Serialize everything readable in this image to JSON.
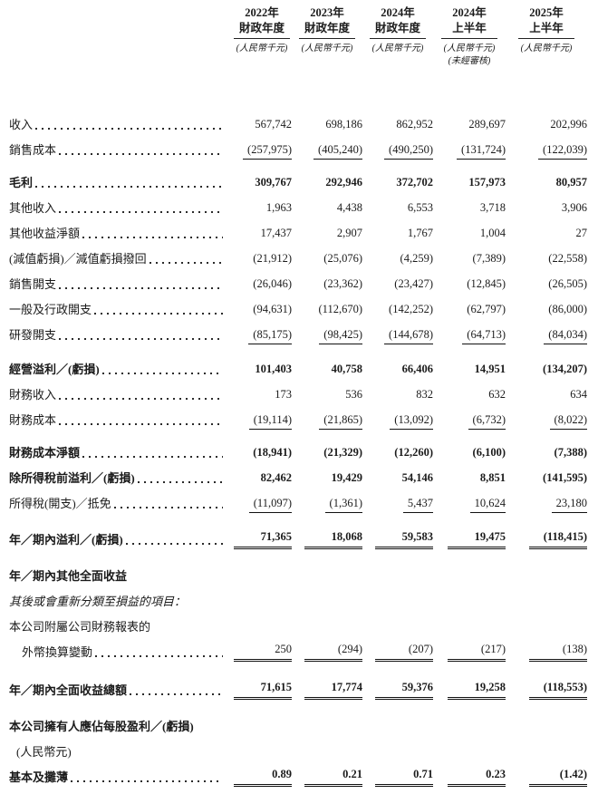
{
  "table": {
    "columns": [
      {
        "year": "2022年",
        "period": "財政年度",
        "unit": "(人民幣千元)",
        "note": ""
      },
      {
        "year": "2023年",
        "period": "財政年度",
        "unit": "(人民幣千元)",
        "note": ""
      },
      {
        "year": "2024年",
        "period": "財政年度",
        "unit": "(人民幣千元)",
        "note": ""
      },
      {
        "year": "2024年",
        "period": "上半年",
        "unit": "(人民幣千元)",
        "note": "(未經審核)"
      },
      {
        "year": "2025年",
        "period": "上半年",
        "unit": "(人民幣千元)",
        "note": ""
      }
    ],
    "rows": [
      {
        "label": "收入",
        "dots": true,
        "values": [
          "567,742",
          "698,186",
          "862,952",
          "289,697",
          "202,996"
        ]
      },
      {
        "label": "銷售成本",
        "dots": true,
        "rule": "single",
        "values": [
          "(257,975)",
          "(405,240)",
          "(490,250)",
          "(131,724)",
          "(122,039)"
        ]
      },
      {
        "label": "毛利",
        "dots": true,
        "bold": true,
        "gap": 8,
        "values": [
          "309,767",
          "292,946",
          "372,702",
          "157,973",
          "80,957"
        ]
      },
      {
        "label": "其他收入",
        "dots": true,
        "values": [
          "1,963",
          "4,438",
          "6,553",
          "3,718",
          "3,906"
        ]
      },
      {
        "label": "其他收益淨額",
        "dots": true,
        "values": [
          "17,437",
          "2,907",
          "1,767",
          "1,004",
          "27"
        ]
      },
      {
        "label": "(減值虧損)／減值虧損撥回",
        "dots": true,
        "values": [
          "(21,912)",
          "(25,076)",
          "(4,259)",
          "(7,389)",
          "(22,558)"
        ]
      },
      {
        "label": "銷售開支",
        "dots": true,
        "values": [
          "(26,046)",
          "(23,362)",
          "(23,427)",
          "(12,845)",
          "(26,505)"
        ]
      },
      {
        "label": "一般及行政開支",
        "dots": true,
        "values": [
          "(94,631)",
          "(112,670)",
          "(142,252)",
          "(62,797)",
          "(86,000)"
        ]
      },
      {
        "label": "研發開支",
        "dots": true,
        "rule": "single",
        "values": [
          "(85,175)",
          "(98,425)",
          "(144,678)",
          "(64,713)",
          "(84,034)"
        ]
      },
      {
        "label": "經營溢利／(虧損)",
        "dots": true,
        "bold": true,
        "gap": 10,
        "values": [
          "101,403",
          "40,758",
          "66,406",
          "14,951",
          "(134,207)"
        ]
      },
      {
        "label": "財務收入",
        "dots": true,
        "values": [
          "173",
          "536",
          "832",
          "632",
          "634"
        ]
      },
      {
        "label": "財務成本",
        "dots": true,
        "rule": "single",
        "values": [
          "(19,114)",
          "(21,865)",
          "(13,092)",
          "(6,732)",
          "(8,022)"
        ]
      },
      {
        "label": "財務成本淨額",
        "dots": true,
        "bold": true,
        "gap": 8,
        "values": [
          "(18,941)",
          "(21,329)",
          "(12,260)",
          "(6,100)",
          "(7,388)"
        ]
      },
      {
        "label": "除所得稅前溢利／(虧損)",
        "dots": true,
        "bold": true,
        "values": [
          "82,462",
          "19,429",
          "54,146",
          "8,851",
          "(141,595)"
        ]
      },
      {
        "label": "所得稅(開支)／抵免",
        "dots": true,
        "rule": "single",
        "values": [
          "(11,097)",
          "(1,361)",
          "5,437",
          "10,624",
          "23,180"
        ]
      },
      {
        "label": "年／期內溢利／(虧損)",
        "dots": true,
        "bold": true,
        "rule": "double",
        "gap": 12,
        "values": [
          "71,365",
          "18,068",
          "59,583",
          "19,475",
          "(118,415)"
        ]
      },
      {
        "label": "年／期內其他全面收益",
        "bold": true,
        "gap": 12,
        "values": [
          "",
          "",
          "",
          "",
          ""
        ]
      },
      {
        "label": "其後或會重新分類至損益的項目：",
        "italic": true,
        "values": [
          "",
          "",
          "",
          "",
          ""
        ]
      },
      {
        "label": "本公司附屬公司財務報表的",
        "values": [
          "",
          "",
          "",
          "",
          ""
        ]
      },
      {
        "label": "外幣換算變動",
        "indent": 14,
        "dots": true,
        "rule": "double",
        "values": [
          "250",
          "(294)",
          "(207)",
          "(217)",
          "(138)"
        ]
      },
      {
        "label": "年／期內全面收益總額",
        "dots": true,
        "bold": true,
        "rule": "double",
        "gap": 14,
        "values": [
          "71,615",
          "17,774",
          "59,376",
          "19,258",
          "(118,553)"
        ]
      },
      {
        "label": "本公司擁有人應佔每股盈利／(虧損)",
        "bold": true,
        "gap": 12,
        "values": [
          "",
          "",
          "",
          "",
          ""
        ]
      },
      {
        "label": "(人民幣元)",
        "indent": 8,
        "values": [
          "",
          "",
          "",
          "",
          ""
        ]
      },
      {
        "label": "基本及攤薄",
        "dots": true,
        "bold": true,
        "rule": "double",
        "values": [
          "0.89",
          "0.21",
          "0.71",
          "0.23",
          "(1.42)"
        ]
      }
    ]
  }
}
